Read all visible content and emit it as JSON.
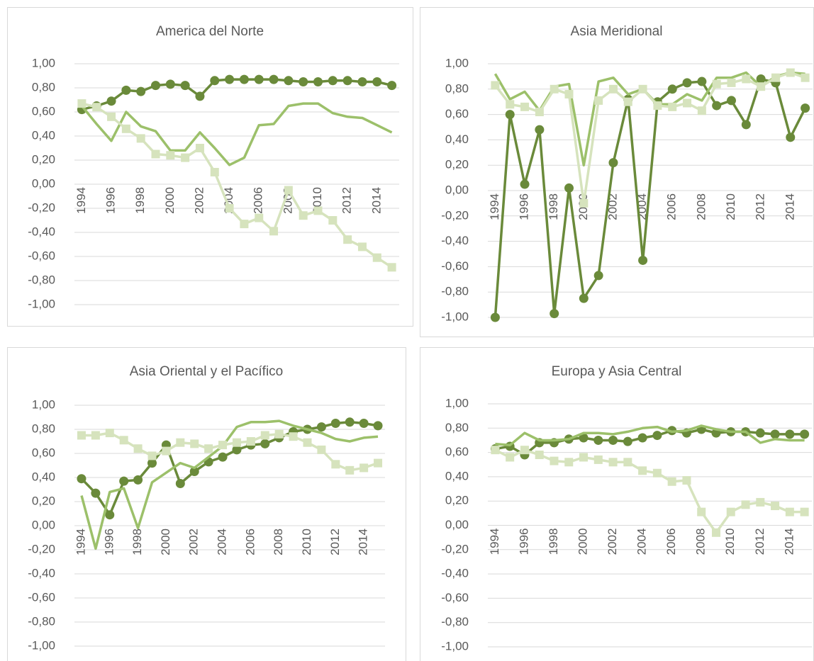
{
  "chart_data": [
    {
      "type": "line",
      "title": "America del Norte",
      "x": [
        1994,
        1995,
        1996,
        1997,
        1998,
        1999,
        2000,
        2001,
        2002,
        2003,
        2004,
        2005,
        2006,
        2007,
        2008,
        2009,
        2010,
        2011,
        2012,
        2013,
        2014,
        2015
      ],
      "xlim": [
        1993.5,
        2015.5
      ],
      "xticks": [
        1994,
        1996,
        1998,
        2000,
        2002,
        2004,
        2006,
        2008,
        2010,
        2012,
        2014
      ],
      "ylim": [
        -1,
        1
      ],
      "yticks": [
        {
          "value": -1,
          "label": "-1,00"
        },
        {
          "value": -0.8,
          "label": "-0,80"
        },
        {
          "value": -0.6,
          "label": "-0,60"
        },
        {
          "value": -0.4,
          "label": "-0,40"
        },
        {
          "value": -0.2,
          "label": "-0,20"
        },
        {
          "value": 0,
          "label": "0,00"
        },
        {
          "value": 0.2,
          "label": "0,20"
        },
        {
          "value": 0.4,
          "label": "0,40"
        },
        {
          "value": 0.6,
          "label": "0,60"
        },
        {
          "value": 0.8,
          "label": "0,80"
        },
        {
          "value": 1,
          "label": "1,00"
        }
      ],
      "grid": true,
      "series": [
        {
          "color": "#6a8a3a",
          "marker": "circle",
          "values": [
            0.62,
            0.65,
            0.69,
            0.78,
            0.77,
            0.82,
            0.83,
            0.82,
            0.73,
            0.86,
            0.87,
            0.87,
            0.87,
            0.87,
            0.86,
            0.85,
            0.85,
            0.86,
            0.86,
            0.85,
            0.85,
            0.82
          ]
        },
        {
          "color": "#9cc06a",
          "marker": "none",
          "values": [
            0.65,
            0.5,
            0.36,
            0.6,
            0.48,
            0.44,
            0.28,
            0.28,
            0.43,
            0.3,
            0.16,
            0.22,
            0.49,
            0.5,
            0.65,
            0.67,
            0.67,
            0.59,
            0.56,
            0.55,
            0.49,
            0.43
          ]
        },
        {
          "color": "#d6e3bd",
          "marker": "square",
          "values": [
            0.67,
            0.64,
            0.56,
            0.46,
            0.38,
            0.25,
            0.24,
            0.22,
            0.3,
            0.1,
            -0.2,
            -0.33,
            -0.28,
            -0.39,
            -0.05,
            -0.26,
            -0.22,
            -0.3,
            -0.46,
            -0.52,
            -0.61,
            -0.69
          ]
        }
      ]
    },
    {
      "type": "line",
      "title": "Asia Meridional",
      "x": [
        1994,
        1995,
        1996,
        1997,
        1998,
        1999,
        2000,
        2001,
        2002,
        2003,
        2004,
        2005,
        2006,
        2007,
        2008,
        2009,
        2010,
        2011,
        2012,
        2013,
        2014,
        2015
      ],
      "xlim": [
        1993.5,
        2015.5
      ],
      "xticks": [
        1994,
        1996,
        1998,
        2000,
        2002,
        2004,
        2006,
        2008,
        2010,
        2012,
        2014
      ],
      "ylim": [
        -1,
        1
      ],
      "yticks": [
        {
          "value": -1,
          "label": "-1,00"
        },
        {
          "value": -0.8,
          "label": "-0,80"
        },
        {
          "value": -0.6,
          "label": "-0,60"
        },
        {
          "value": -0.4,
          "label": "-0,40"
        },
        {
          "value": -0.2,
          "label": "-0,20"
        },
        {
          "value": 0,
          "label": "0,00"
        },
        {
          "value": 0.2,
          "label": "0,20"
        },
        {
          "value": 0.4,
          "label": "0,40"
        },
        {
          "value": 0.6,
          "label": "0,60"
        },
        {
          "value": 0.8,
          "label": "0,80"
        },
        {
          "value": 1,
          "label": "1,00"
        }
      ],
      "grid": true,
      "series": [
        {
          "color": "#6a8a3a",
          "marker": "circle",
          "values": [
            -1.0,
            0.6,
            0.05,
            0.48,
            -0.97,
            0.02,
            -0.85,
            -0.67,
            0.22,
            0.72,
            -0.55,
            0.7,
            0.8,
            0.85,
            0.86,
            0.67,
            0.71,
            0.52,
            0.88,
            0.85,
            0.42,
            0.65
          ]
        },
        {
          "color": "#9cc06a",
          "marker": "none",
          "values": [
            0.92,
            0.72,
            0.78,
            0.63,
            0.82,
            0.84,
            0.2,
            0.86,
            0.89,
            0.76,
            0.8,
            0.68,
            0.68,
            0.76,
            0.71,
            0.89,
            0.89,
            0.93,
            0.82,
            0.9,
            0.93,
            0.92
          ]
        },
        {
          "color": "#d6e3bd",
          "marker": "square",
          "values": [
            0.83,
            0.68,
            0.66,
            0.62,
            0.8,
            0.76,
            -0.1,
            0.71,
            0.8,
            0.7,
            0.8,
            0.67,
            0.66,
            0.69,
            0.63,
            0.84,
            0.85,
            0.88,
            0.82,
            0.89,
            0.93,
            0.89
          ]
        }
      ]
    },
    {
      "type": "line",
      "title": "Asia Oriental y el Pacífico",
      "x": [
        1994,
        1995,
        1996,
        1997,
        1998,
        1999,
        2000,
        2001,
        2002,
        2003,
        2004,
        2005,
        2006,
        2007,
        2008,
        2009,
        2010,
        2011,
        2012,
        2013,
        2014,
        2015
      ],
      "xlim": [
        1993.5,
        2015.5
      ],
      "xticks": [
        1994,
        1996,
        1998,
        2000,
        2002,
        2004,
        2006,
        2008,
        2010,
        2012,
        2014
      ],
      "ylim": [
        -1,
        1
      ],
      "yticks": [
        {
          "value": -1,
          "label": "-1,00"
        },
        {
          "value": -0.8,
          "label": "-0,80"
        },
        {
          "value": -0.6,
          "label": "-0,60"
        },
        {
          "value": -0.4,
          "label": "-0,40"
        },
        {
          "value": -0.2,
          "label": "-0,20"
        },
        {
          "value": 0,
          "label": "0,00"
        },
        {
          "value": 0.2,
          "label": "0,20"
        },
        {
          "value": 0.4,
          "label": "0,40"
        },
        {
          "value": 0.6,
          "label": "0,60"
        },
        {
          "value": 0.8,
          "label": "0,80"
        },
        {
          "value": 1,
          "label": "1,00"
        }
      ],
      "grid": true,
      "series": [
        {
          "color": "#6a8a3a",
          "marker": "circle",
          "values": [
            0.39,
            0.27,
            0.09,
            0.37,
            0.38,
            0.52,
            0.67,
            0.35,
            0.45,
            0.53,
            0.57,
            0.63,
            0.67,
            0.68,
            0.73,
            0.78,
            0.8,
            0.82,
            0.85,
            0.86,
            0.85,
            0.83
          ]
        },
        {
          "color": "#9cc06a",
          "marker": "none",
          "values": [
            0.25,
            -0.19,
            0.28,
            0.31,
            -0.02,
            0.36,
            0.44,
            0.52,
            0.48,
            0.57,
            0.66,
            0.82,
            0.86,
            0.86,
            0.87,
            0.83,
            0.8,
            0.77,
            0.72,
            0.7,
            0.73,
            0.74
          ]
        },
        {
          "color": "#d6e3bd",
          "marker": "square",
          "values": [
            0.75,
            0.75,
            0.77,
            0.71,
            0.64,
            0.58,
            0.62,
            0.69,
            0.68,
            0.64,
            0.67,
            0.69,
            0.7,
            0.75,
            0.76,
            0.74,
            0.69,
            0.63,
            0.51,
            0.46,
            0.48,
            0.52
          ]
        }
      ]
    },
    {
      "type": "line",
      "title": "Europa y Asia Central",
      "x": [
        1994,
        1995,
        1996,
        1997,
        1998,
        1999,
        2000,
        2001,
        2002,
        2003,
        2004,
        2005,
        2006,
        2007,
        2008,
        2009,
        2010,
        2011,
        2012,
        2013,
        2014,
        2015
      ],
      "xlim": [
        1993.5,
        2015.5
      ],
      "xticks": [
        1994,
        1996,
        1998,
        2000,
        2002,
        2004,
        2006,
        2008,
        2010,
        2012,
        2014
      ],
      "ylim": [
        -1,
        1
      ],
      "yticks": [
        {
          "value": -1,
          "label": "-1,00"
        },
        {
          "value": -0.8,
          "label": "-0,80"
        },
        {
          "value": -0.6,
          "label": "-0,60"
        },
        {
          "value": -0.4,
          "label": "-0,40"
        },
        {
          "value": -0.2,
          "label": "-0,20"
        },
        {
          "value": 0,
          "label": "0,00"
        },
        {
          "value": 0.2,
          "label": "0,20"
        },
        {
          "value": 0.4,
          "label": "0,40"
        },
        {
          "value": 0.6,
          "label": "0,60"
        },
        {
          "value": 0.8,
          "label": "0,80"
        },
        {
          "value": 1,
          "label": "1,00"
        }
      ],
      "grid": true,
      "series": [
        {
          "color": "#6a8a3a",
          "marker": "circle",
          "values": [
            0.63,
            0.65,
            0.58,
            0.68,
            0.68,
            0.71,
            0.72,
            0.7,
            0.7,
            0.69,
            0.72,
            0.74,
            0.78,
            0.76,
            0.79,
            0.76,
            0.77,
            0.77,
            0.76,
            0.75,
            0.75,
            0.75
          ]
        },
        {
          "color": "#9cc06a",
          "marker": "none",
          "values": [
            0.67,
            0.66,
            0.76,
            0.7,
            0.7,
            0.71,
            0.76,
            0.76,
            0.75,
            0.77,
            0.8,
            0.81,
            0.77,
            0.78,
            0.82,
            0.79,
            0.77,
            0.77,
            0.68,
            0.71,
            0.7,
            0.7
          ]
        },
        {
          "color": "#d6e3bd",
          "marker": "square",
          "values": [
            0.62,
            0.56,
            0.62,
            0.58,
            0.53,
            0.52,
            0.56,
            0.54,
            0.52,
            0.52,
            0.45,
            0.43,
            0.36,
            0.37,
            0.11,
            -0.06,
            0.11,
            0.17,
            0.19,
            0.16,
            0.11,
            0.11
          ]
        }
      ]
    }
  ]
}
